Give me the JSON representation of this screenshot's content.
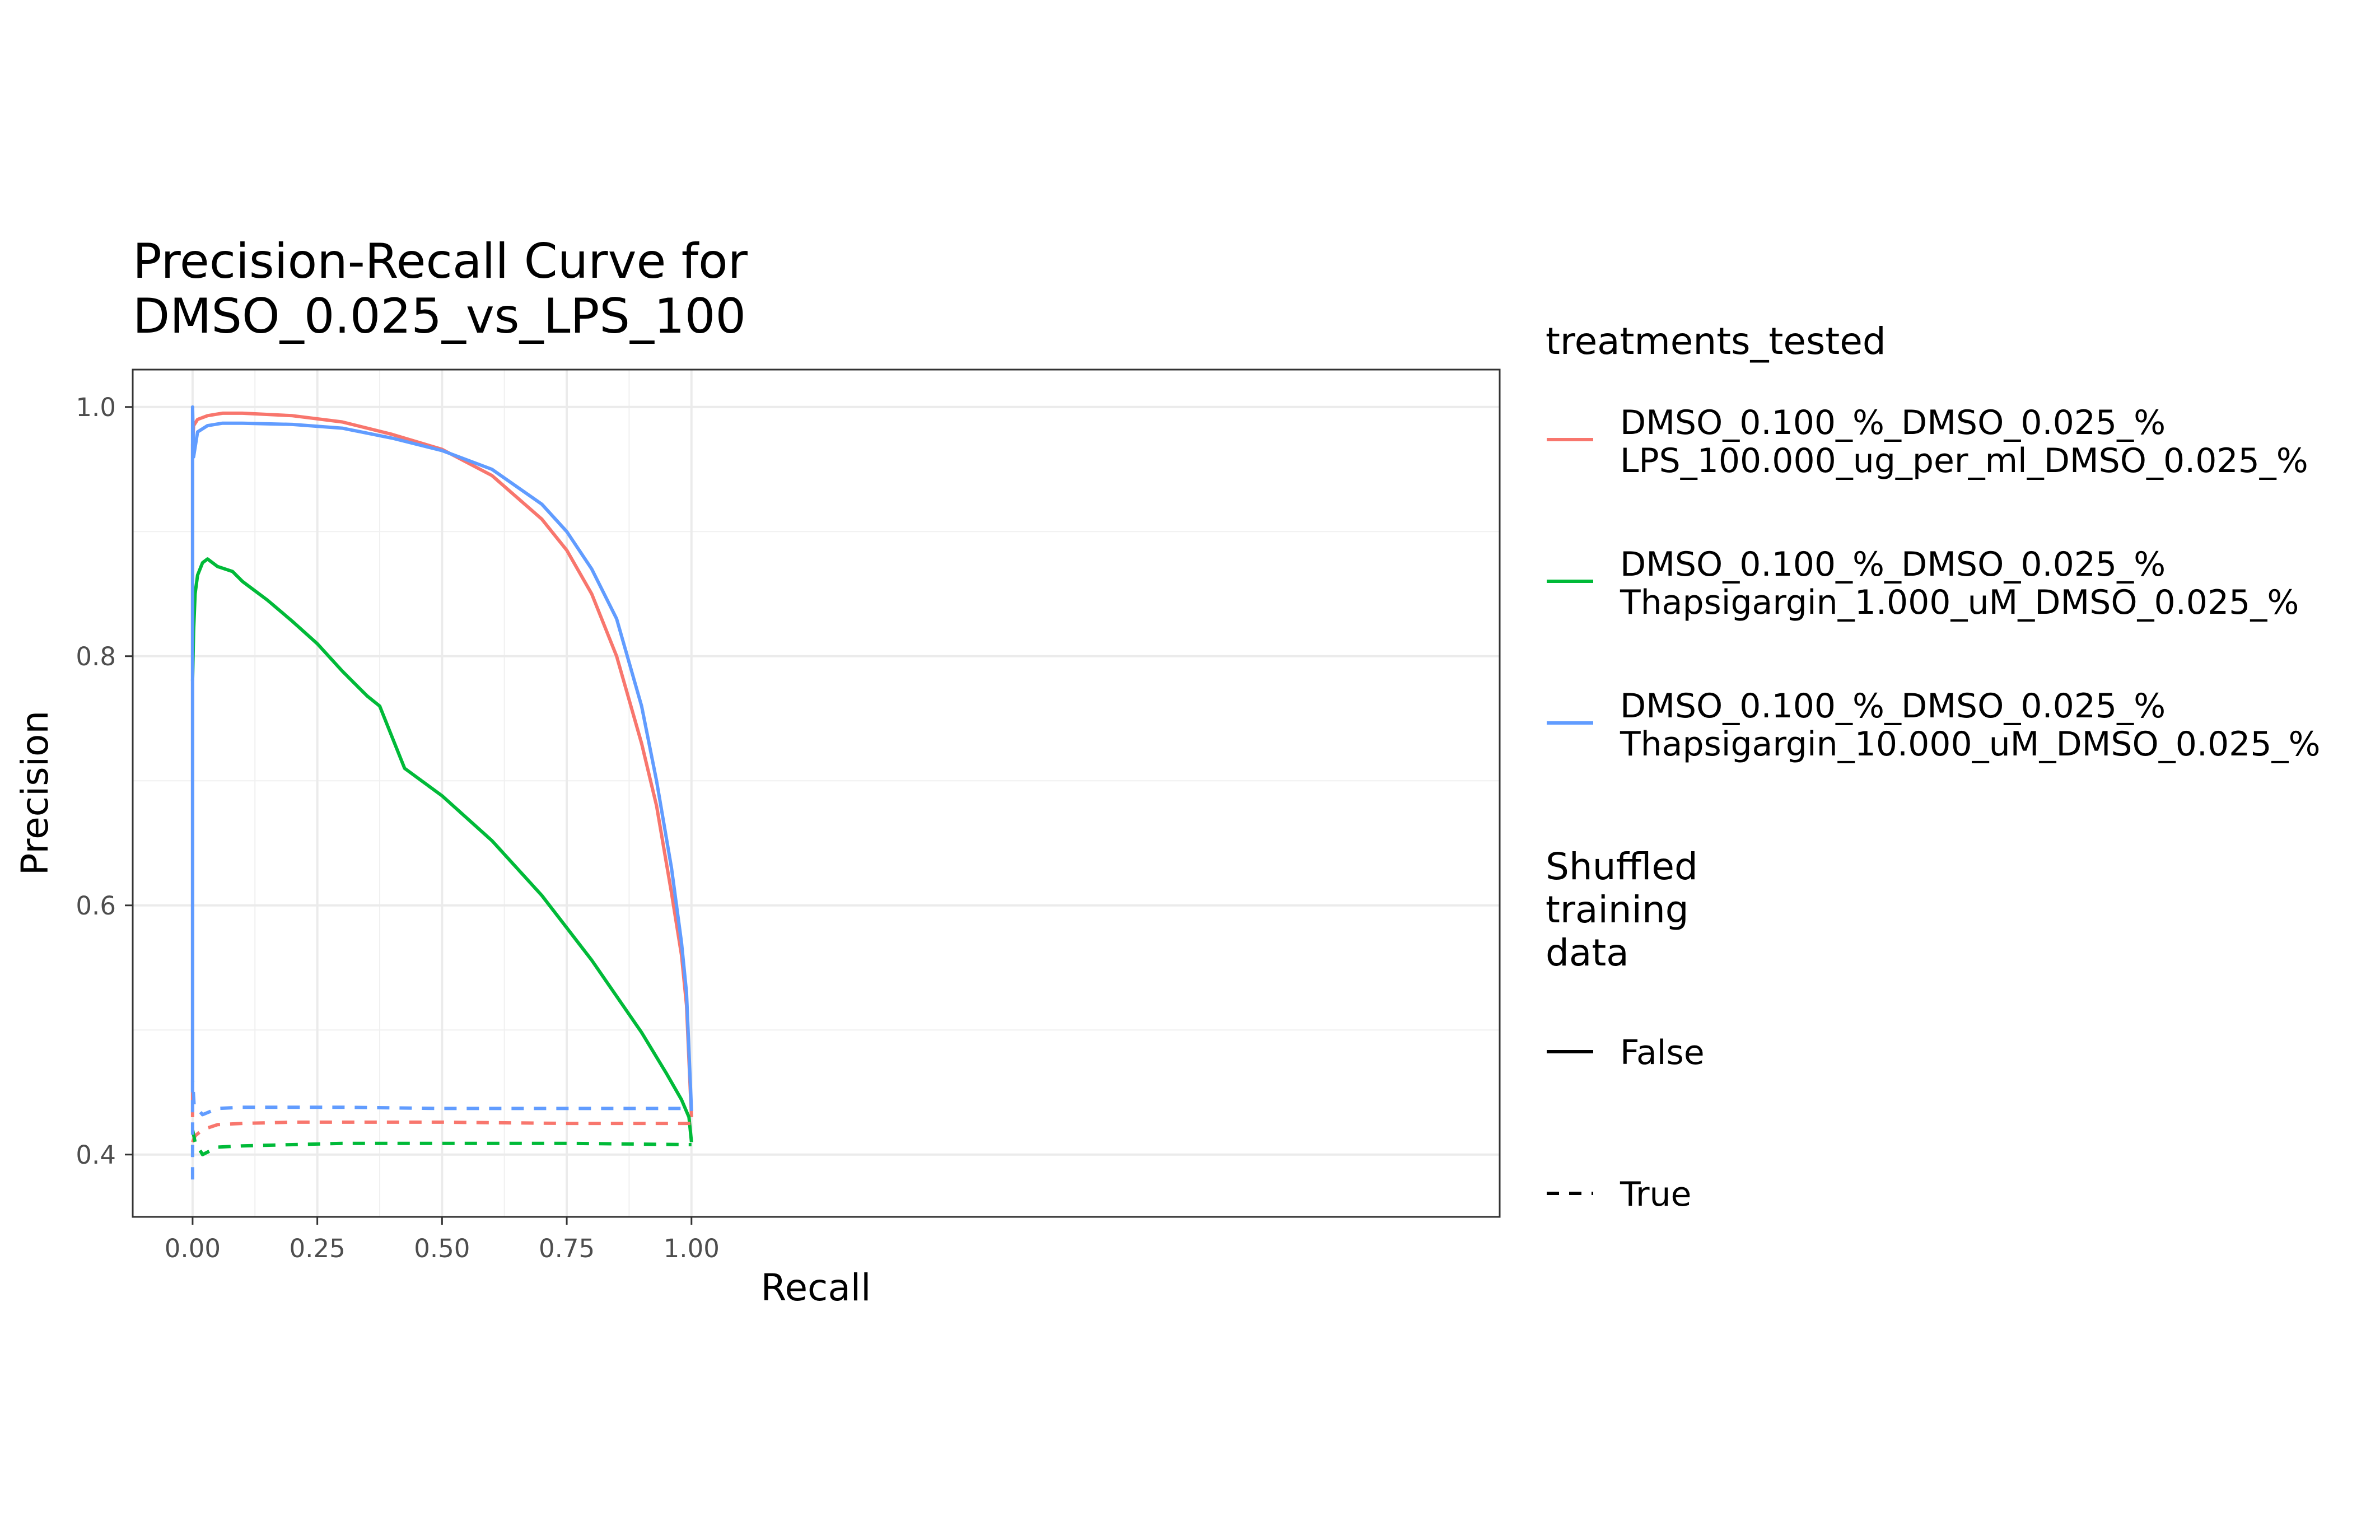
{
  "chart_data": {
    "type": "line",
    "title_lines": [
      "Precision-Recall Curve for",
      "DMSO_0.025_vs_LPS_100"
    ],
    "xlabel": "Recall",
    "ylabel": "Precision",
    "xlim": [
      -0.12,
      2.62
    ],
    "ylim": [
      0.35,
      1.03
    ],
    "x_ticks": [
      0.0,
      0.25,
      0.5,
      0.75,
      1.0
    ],
    "x_tick_labels": [
      "0.00",
      "0.25",
      "0.50",
      "0.75",
      "1.00"
    ],
    "y_ticks": [
      0.4,
      0.6,
      0.8,
      1.0
    ],
    "y_tick_labels": [
      "0.4",
      "0.6",
      "0.8",
      "1.0"
    ],
    "grid": true,
    "legend_position": "right",
    "legend": {
      "color_title": "treatments_tested",
      "color_entries": [
        {
          "lines": [
            "DMSO_0.100_%_DMSO_0.025_%",
            "LPS_100.000_ug_per_ml_DMSO_0.025_%"
          ],
          "color": "#F8766D"
        },
        {
          "lines": [
            "DMSO_0.100_%_DMSO_0.025_%",
            "Thapsigargin_1.000_uM_DMSO_0.025_%"
          ],
          "color": "#00BA38"
        },
        {
          "lines": [
            "DMSO_0.100_%_DMSO_0.025_%",
            "Thapsigargin_10.000_uM_DMSO_0.025_%"
          ],
          "color": "#619CFF"
        }
      ],
      "linetype_title_lines": [
        "Shuffled",
        "training",
        "data"
      ],
      "linetype_entries": [
        {
          "label": "False",
          "dash": "solid"
        },
        {
          "label": "True",
          "dash": "dashed"
        }
      ]
    },
    "series": [
      {
        "treatment": "DMSO_0.100_%_DMSO_0.025_% LPS_100.000_ug_per_ml_DMSO_0.025_%",
        "shuffled": "False",
        "color": "#F8766D",
        "dash": "solid",
        "points": [
          [
            0.0,
            0.43
          ],
          [
            0.0,
            0.97
          ],
          [
            0.002,
            0.985
          ],
          [
            0.01,
            0.99
          ],
          [
            0.03,
            0.993
          ],
          [
            0.06,
            0.995
          ],
          [
            0.1,
            0.995
          ],
          [
            0.2,
            0.993
          ],
          [
            0.3,
            0.988
          ],
          [
            0.4,
            0.978
          ],
          [
            0.5,
            0.966
          ],
          [
            0.6,
            0.945
          ],
          [
            0.7,
            0.91
          ],
          [
            0.75,
            0.885
          ],
          [
            0.8,
            0.85
          ],
          [
            0.85,
            0.8
          ],
          [
            0.9,
            0.73
          ],
          [
            0.93,
            0.68
          ],
          [
            0.96,
            0.61
          ],
          [
            0.98,
            0.56
          ],
          [
            0.99,
            0.52
          ],
          [
            1.0,
            0.43
          ]
        ]
      },
      {
        "treatment": "DMSO_0.100_%_DMSO_0.025_% Thapsigargin_1.000_uM_DMSO_0.025_%",
        "shuffled": "False",
        "color": "#00BA38",
        "dash": "solid",
        "points": [
          [
            0.0,
            0.78
          ],
          [
            0.002,
            0.82
          ],
          [
            0.005,
            0.85
          ],
          [
            0.01,
            0.865
          ],
          [
            0.02,
            0.875
          ],
          [
            0.03,
            0.878
          ],
          [
            0.05,
            0.872
          ],
          [
            0.08,
            0.868
          ],
          [
            0.1,
            0.86
          ],
          [
            0.15,
            0.845
          ],
          [
            0.2,
            0.828
          ],
          [
            0.25,
            0.81
          ],
          [
            0.3,
            0.788
          ],
          [
            0.35,
            0.768
          ],
          [
            0.375,
            0.76
          ],
          [
            0.425,
            0.71
          ],
          [
            0.5,
            0.688
          ],
          [
            0.6,
            0.652
          ],
          [
            0.7,
            0.608
          ],
          [
            0.8,
            0.556
          ],
          [
            0.9,
            0.498
          ],
          [
            0.95,
            0.465
          ],
          [
            0.98,
            0.444
          ],
          [
            0.995,
            0.43
          ],
          [
            1.0,
            0.41
          ]
        ]
      },
      {
        "treatment": "DMSO_0.100_%_DMSO_0.025_% Thapsigargin_10.000_uM_DMSO_0.025_%",
        "shuffled": "False",
        "color": "#619CFF",
        "dash": "solid",
        "points": [
          [
            0.0,
            0.45
          ],
          [
            0.0,
            1.0
          ],
          [
            0.002,
            0.96
          ],
          [
            0.01,
            0.98
          ],
          [
            0.03,
            0.985
          ],
          [
            0.06,
            0.987
          ],
          [
            0.1,
            0.987
          ],
          [
            0.2,
            0.986
          ],
          [
            0.3,
            0.983
          ],
          [
            0.4,
            0.975
          ],
          [
            0.5,
            0.965
          ],
          [
            0.6,
            0.95
          ],
          [
            0.7,
            0.922
          ],
          [
            0.75,
            0.9
          ],
          [
            0.8,
            0.87
          ],
          [
            0.85,
            0.83
          ],
          [
            0.9,
            0.76
          ],
          [
            0.93,
            0.7
          ],
          [
            0.96,
            0.63
          ],
          [
            0.98,
            0.57
          ],
          [
            0.99,
            0.53
          ],
          [
            1.0,
            0.435
          ]
        ]
      },
      {
        "treatment": "DMSO_0.100_%_DMSO_0.025_% LPS_100.000_ug_per_ml_DMSO_0.025_%",
        "shuffled": "True",
        "color": "#F8766D",
        "dash": "dashed",
        "points": [
          [
            0.0,
            0.41
          ],
          [
            0.005,
            0.415
          ],
          [
            0.02,
            0.42
          ],
          [
            0.05,
            0.424
          ],
          [
            0.1,
            0.425
          ],
          [
            0.2,
            0.426
          ],
          [
            0.3,
            0.426
          ],
          [
            0.5,
            0.426
          ],
          [
            0.75,
            0.425
          ],
          [
            1.0,
            0.425
          ]
        ]
      },
      {
        "treatment": "DMSO_0.100_%_DMSO_0.025_% Thapsigargin_1.000_uM_DMSO_0.025_%",
        "shuffled": "True",
        "color": "#00BA38",
        "dash": "dashed",
        "points": [
          [
            0.0,
            0.42
          ],
          [
            0.005,
            0.41
          ],
          [
            0.02,
            0.4
          ],
          [
            0.05,
            0.406
          ],
          [
            0.1,
            0.407
          ],
          [
            0.2,
            0.408
          ],
          [
            0.3,
            0.409
          ],
          [
            0.5,
            0.409
          ],
          [
            0.75,
            0.409
          ],
          [
            1.0,
            0.408
          ]
        ]
      },
      {
        "treatment": "DMSO_0.100_%_DMSO_0.025_% Thapsigargin_10.000_uM_DMSO_0.025_%",
        "shuffled": "True",
        "color": "#619CFF",
        "dash": "dashed",
        "points": [
          [
            0.0,
            0.38
          ],
          [
            0.0,
            0.46
          ],
          [
            0.003,
            0.44
          ],
          [
            0.02,
            0.432
          ],
          [
            0.05,
            0.437
          ],
          [
            0.1,
            0.438
          ],
          [
            0.2,
            0.438
          ],
          [
            0.3,
            0.438
          ],
          [
            0.5,
            0.437
          ],
          [
            0.75,
            0.437
          ],
          [
            1.0,
            0.437
          ]
        ]
      }
    ]
  }
}
